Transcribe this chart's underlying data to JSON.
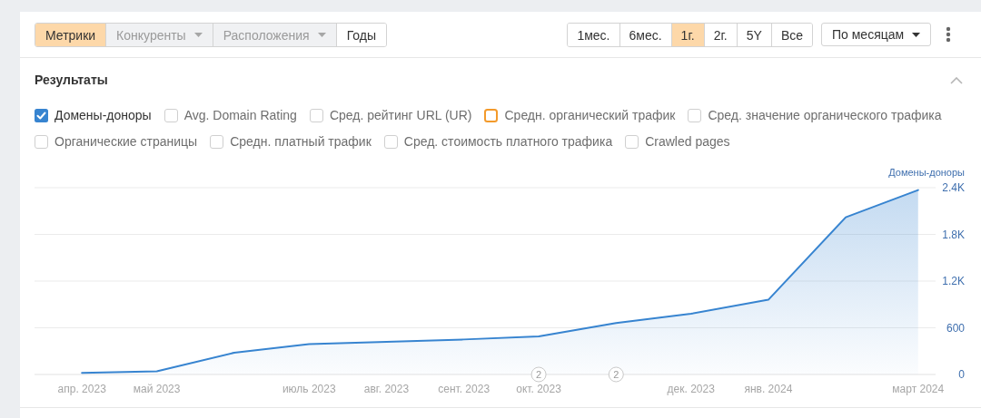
{
  "chart_data": {
    "type": "area",
    "title": "Результаты",
    "ylabel": "Домены-доноры",
    "x": [
      "2023-04",
      "2023-05",
      "2023-06",
      "2023-07",
      "2023-08",
      "2023-09",
      "2023-10",
      "2023-11",
      "2023-12",
      "2024-01",
      "2024-02",
      "2024-03"
    ],
    "series": [
      {
        "name": "Домены-доноры",
        "color": "#3784d0",
        "values": [
          20,
          40,
          280,
          390,
          420,
          450,
          490,
          660,
          780,
          960,
          2020,
          2370
        ]
      }
    ],
    "xlim": [
      "2023-03-13",
      "2024-03-08"
    ],
    "xticks": [
      {
        "value": "2023-04",
        "label": "апр. 2023"
      },
      {
        "value": "2023-05",
        "label": "май 2023"
      },
      {
        "value": "2023-07",
        "label": "июль 2023"
      },
      {
        "value": "2023-08",
        "label": "авг. 2023"
      },
      {
        "value": "2023-09",
        "label": "сент. 2023"
      },
      {
        "value": "2023-10",
        "label": "окт. 2023"
      },
      {
        "value": "2023-12",
        "label": "дек. 2023"
      },
      {
        "value": "2024-01",
        "label": "янв. 2024"
      },
      {
        "value": "2024-03",
        "label": "март 2024"
      }
    ],
    "ylim": [
      0,
      2400
    ],
    "yticks": [
      0,
      600,
      {
        "value": 1200,
        "label": "1.2K"
      },
      {
        "value": 1800,
        "label": "1.8K"
      },
      {
        "value": 2400,
        "label": "2.4K"
      }
    ],
    "grid": "y",
    "legend": "top left",
    "annotations": [
      "Метрики",
      "Конкуренты",
      "Расположения",
      "Годы",
      "1мес.",
      "6мес.",
      "1г.",
      "2г.",
      "5Y",
      "Все",
      "По месяцам",
      "Avg. Domain Rating",
      "Сред. рейтинг URL (UR)",
      "Средн. органический трафик",
      "Сред. значение органического трафика",
      "Органические страницы",
      "Средн. платный трафик",
      "Сред. стоимость платного трафика",
      "Crawled pages",
      {
        "text": "2",
        "x": "2023-10",
        "y": 0
      },
      {
        "text": "2",
        "x": "2023-11",
        "y": 0
      }
    ]
  }
}
